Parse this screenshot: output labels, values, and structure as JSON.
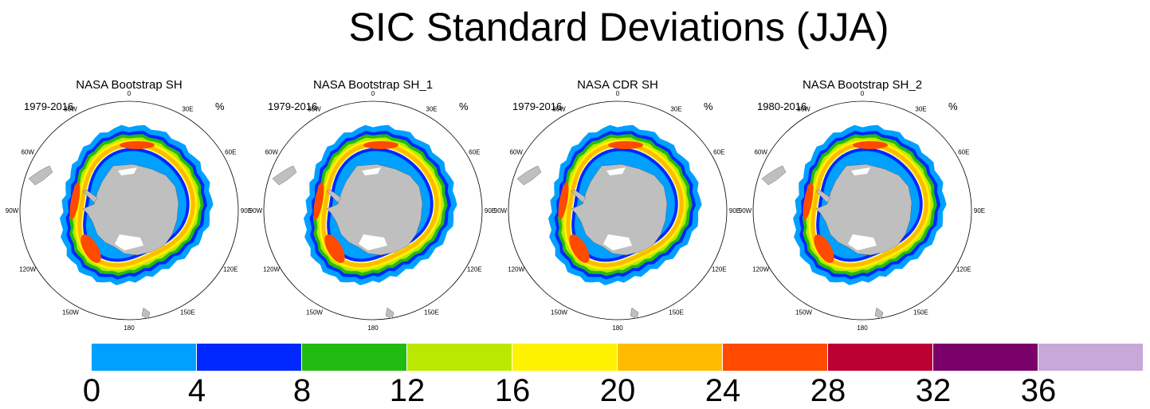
{
  "title": "SIC Standard Deviations (JJA)",
  "panels": [
    {
      "title": "NASA Bootstrap SH",
      "period": "1979-2016",
      "unit": "%"
    },
    {
      "title": "NASA Bootstrap SH_1",
      "period": "1979-2016",
      "unit": "%"
    },
    {
      "title": "NASA CDR SH",
      "period": "1979-2016",
      "unit": "%"
    },
    {
      "title": "NASA Bootstrap SH_2",
      "period": "1980-2016",
      "unit": "%"
    }
  ],
  "longitude_labels": [
    "0",
    "30E",
    "60E",
    "90E",
    "120E",
    "150E",
    "180",
    "150W",
    "120W",
    "90W",
    "60W",
    "30W"
  ],
  "colorbar": {
    "colors": [
      "#00a0ff",
      "#0028ff",
      "#22bb11",
      "#bbe800",
      "#fff200",
      "#ffbb00",
      "#ff4a00",
      "#bb0033",
      "#7a006a",
      "#c7a8d8"
    ],
    "labels": [
      "0",
      "4",
      "8",
      "12",
      "16",
      "20",
      "24",
      "28",
      "32",
      "36"
    ]
  },
  "colors": {
    "land": "#bfbfbf",
    "ice_shelf": "#ffffff",
    "ocean": "#ffffff"
  }
}
